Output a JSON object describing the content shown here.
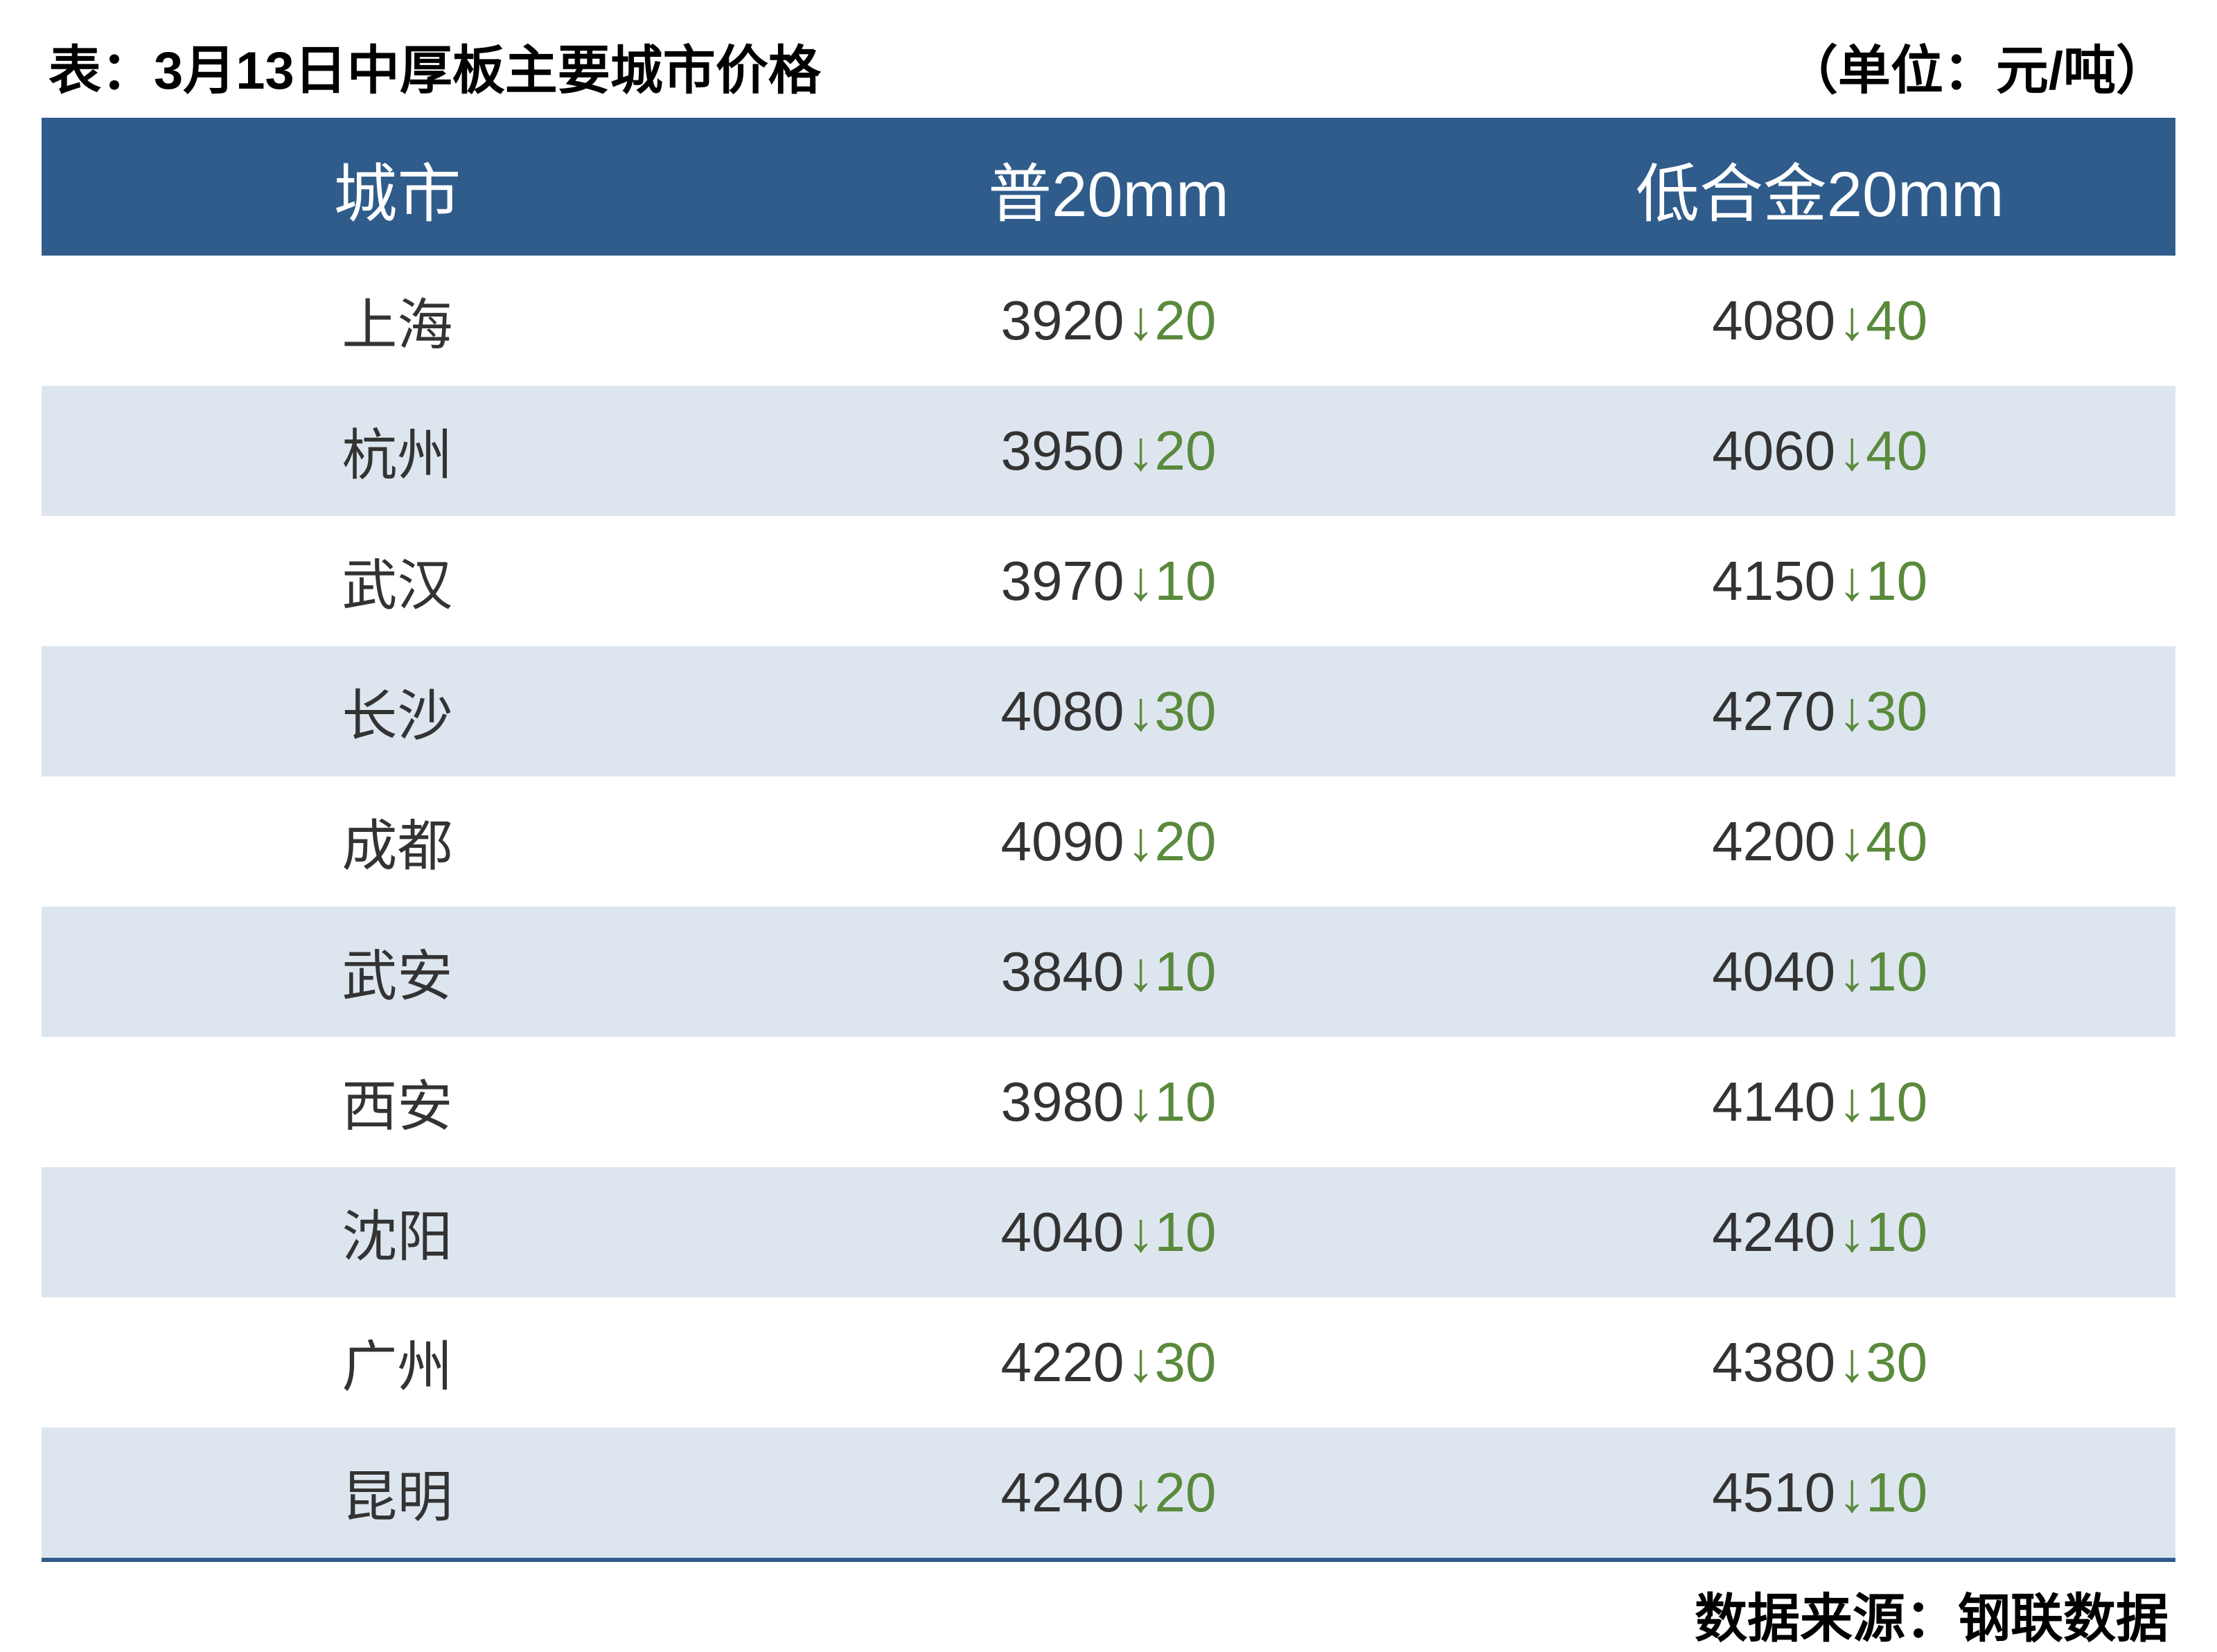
{
  "title": "表：3月13日中厚板主要城市价格",
  "unit": "（单位：元/吨）",
  "footer": "数据来源：钢联数据",
  "table": {
    "type": "table",
    "header_bg": "#2f5c8b",
    "header_text_color": "#ffffff",
    "row_odd_bg": "#ffffff",
    "row_even_bg": "#dde6ef",
    "border_color": "#2f5c8b",
    "value_color": "#333333",
    "delta_color": "#5a8a3c",
    "arrow_down": "↓",
    "header_fontsize": 92,
    "body_fontsize": 80,
    "columns": [
      "城市",
      "普20mm",
      "低合金20mm"
    ],
    "rows": [
      {
        "city": "上海",
        "p1_value": "3920",
        "p1_delta": "20",
        "p2_value": "4080",
        "p2_delta": "40"
      },
      {
        "city": "杭州",
        "p1_value": "3950",
        "p1_delta": "20",
        "p2_value": "4060",
        "p2_delta": "40"
      },
      {
        "city": "武汉",
        "p1_value": "3970",
        "p1_delta": "10",
        "p2_value": "4150",
        "p2_delta": "10"
      },
      {
        "city": "长沙",
        "p1_value": "4080",
        "p1_delta": "30",
        "p2_value": "4270",
        "p2_delta": "30"
      },
      {
        "city": "成都",
        "p1_value": "4090",
        "p1_delta": "20",
        "p2_value": "4200",
        "p2_delta": "40"
      },
      {
        "city": "武安",
        "p1_value": "3840",
        "p1_delta": "10",
        "p2_value": "4040",
        "p2_delta": "10"
      },
      {
        "city": "西安",
        "p1_value": "3980",
        "p1_delta": "10",
        "p2_value": "4140",
        "p2_delta": "10"
      },
      {
        "city": "沈阳",
        "p1_value": "4040",
        "p1_delta": "10",
        "p2_value": "4240",
        "p2_delta": "10"
      },
      {
        "city": "广州",
        "p1_value": "4220",
        "p1_delta": "30",
        "p2_value": "4380",
        "p2_delta": "30"
      },
      {
        "city": "昆明",
        "p1_value": "4240",
        "p1_delta": "20",
        "p2_value": "4510",
        "p2_delta": "10"
      }
    ]
  }
}
